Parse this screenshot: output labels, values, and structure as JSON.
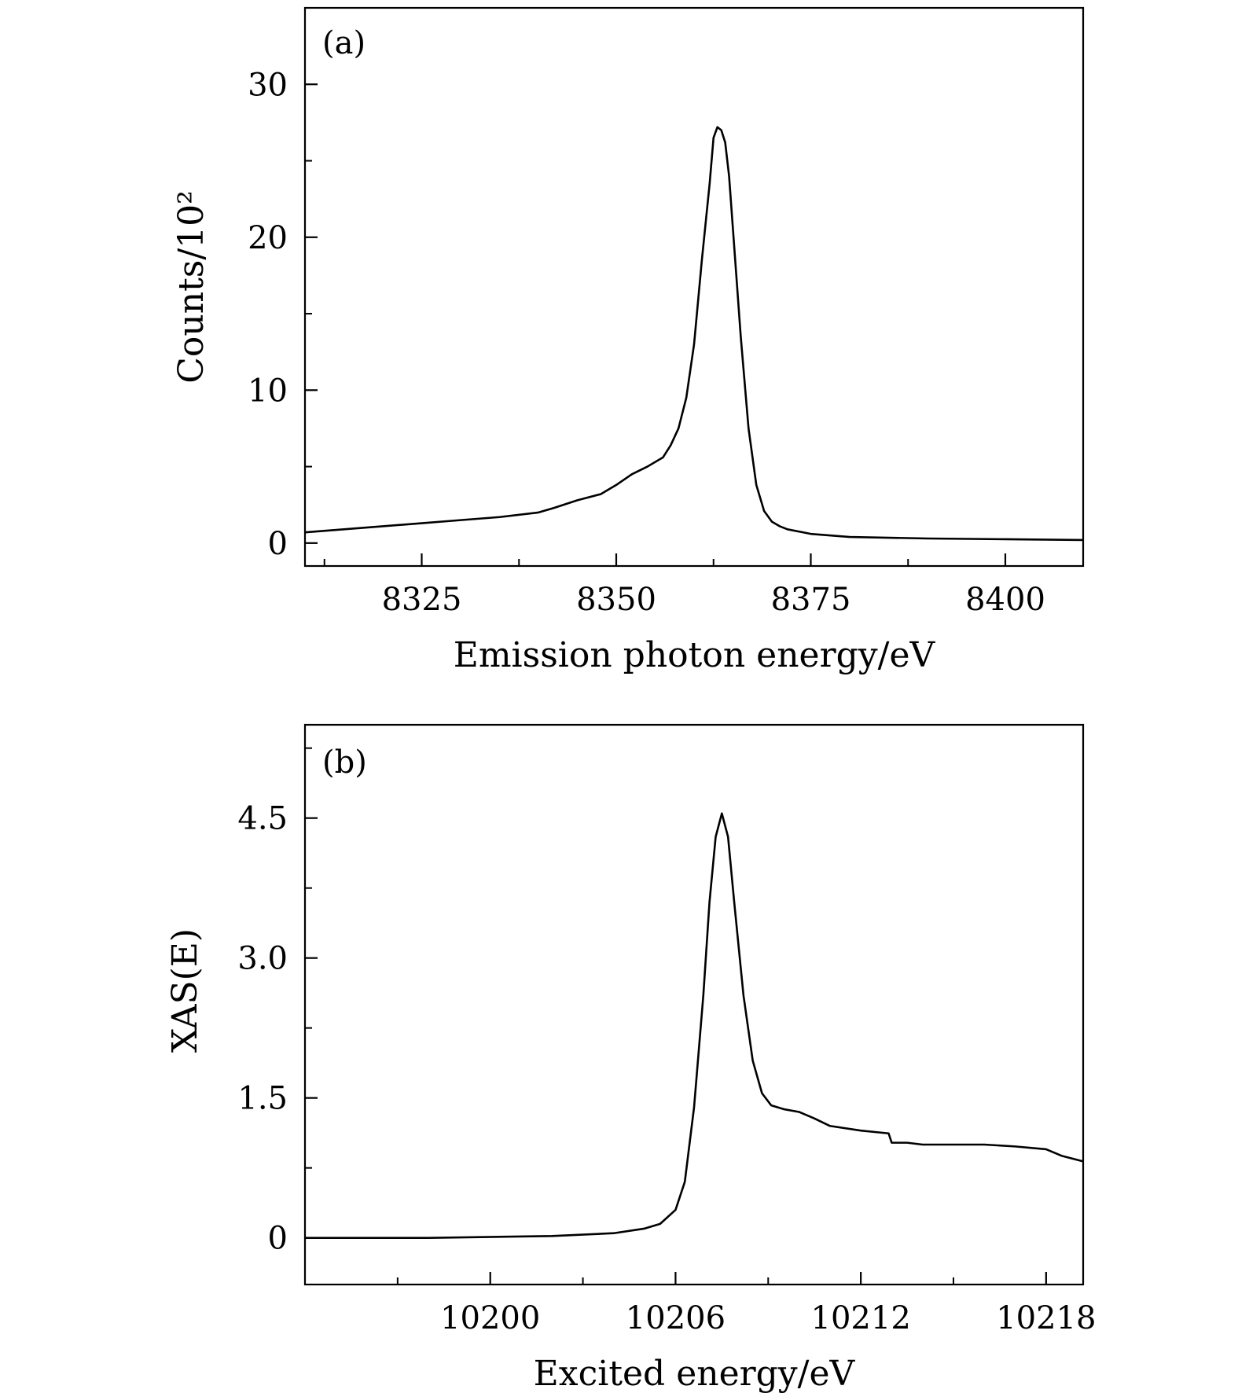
{
  "chart_data": [
    {
      "type": "line",
      "panel_label": "(a)",
      "xlabel": "Emission photon energy/eV",
      "ylabel": "Counts/10²",
      "xlim": [
        8310,
        8410
      ],
      "ylim": [
        -1.5,
        35
      ],
      "x_ticks": [
        8325,
        8350,
        8375,
        8400
      ],
      "x_tick_labels": [
        "8325",
        "8350",
        "8375",
        "8400"
      ],
      "y_ticks": [
        0,
        10,
        20,
        30
      ],
      "y_tick_labels": [
        "0",
        "10",
        "20",
        "30"
      ],
      "grid": false,
      "legend": "none",
      "series": [
        {
          "x": [
            8310,
            8315,
            8320,
            8325,
            8330,
            8335,
            8340,
            8342,
            8345,
            8348,
            8350,
            8352,
            8354,
            8356,
            8357,
            8358,
            8359,
            8360,
            8361,
            8362,
            8362.5,
            8363,
            8363.5,
            8364,
            8364.5,
            8365,
            8366,
            8367,
            8368,
            8369,
            8370,
            8371,
            8372,
            8375,
            8380,
            8390,
            8400,
            8410
          ],
          "y": [
            0.7,
            0.9,
            1.1,
            1.3,
            1.5,
            1.7,
            2.0,
            2.3,
            2.8,
            3.2,
            3.8,
            4.5,
            5.0,
            5.6,
            6.4,
            7.5,
            9.5,
            13.0,
            18.5,
            23.5,
            26.5,
            27.2,
            27.0,
            26.2,
            24.0,
            20.5,
            13.5,
            7.5,
            3.8,
            2.1,
            1.4,
            1.1,
            0.9,
            0.6,
            0.4,
            0.3,
            0.25,
            0.2
          ]
        }
      ]
    },
    {
      "type": "line",
      "panel_label": "(b)",
      "xlabel": "Excited energy/eV",
      "ylabel": "XAS(E)",
      "xlim": [
        10194,
        10219.2
      ],
      "ylim": [
        -0.5,
        5.5
      ],
      "x_ticks": [
        10200,
        10206,
        10212,
        10218
      ],
      "x_tick_labels": [
        "10200",
        "10206",
        "10212",
        "10218"
      ],
      "y_ticks": [
        0,
        1.5,
        3.0,
        4.5
      ],
      "y_tick_labels": [
        "0",
        "1.5",
        "3.0",
        "4.5"
      ],
      "grid": false,
      "legend": "none",
      "series": [
        {
          "x": [
            10194,
            10198,
            10202,
            10204,
            10205,
            10205.5,
            10206,
            10206.3,
            10206.6,
            10206.9,
            10207.1,
            10207.3,
            10207.5,
            10207.7,
            10207.9,
            10208.2,
            10208.5,
            10208.8,
            10209.1,
            10209.5,
            10210,
            10210.5,
            10211,
            10212,
            10212.9,
            10213.0,
            10213.5,
            10214,
            10215,
            10216,
            10217,
            10218,
            10218.5,
            10219.2
          ],
          "y": [
            0,
            0,
            0.02,
            0.05,
            0.1,
            0.15,
            0.3,
            0.6,
            1.4,
            2.6,
            3.6,
            4.3,
            4.55,
            4.3,
            3.6,
            2.6,
            1.9,
            1.55,
            1.42,
            1.38,
            1.35,
            1.28,
            1.2,
            1.15,
            1.12,
            1.02,
            1.02,
            1.0,
            1.0,
            1.0,
            0.98,
            0.95,
            0.88,
            0.82
          ]
        }
      ]
    }
  ]
}
